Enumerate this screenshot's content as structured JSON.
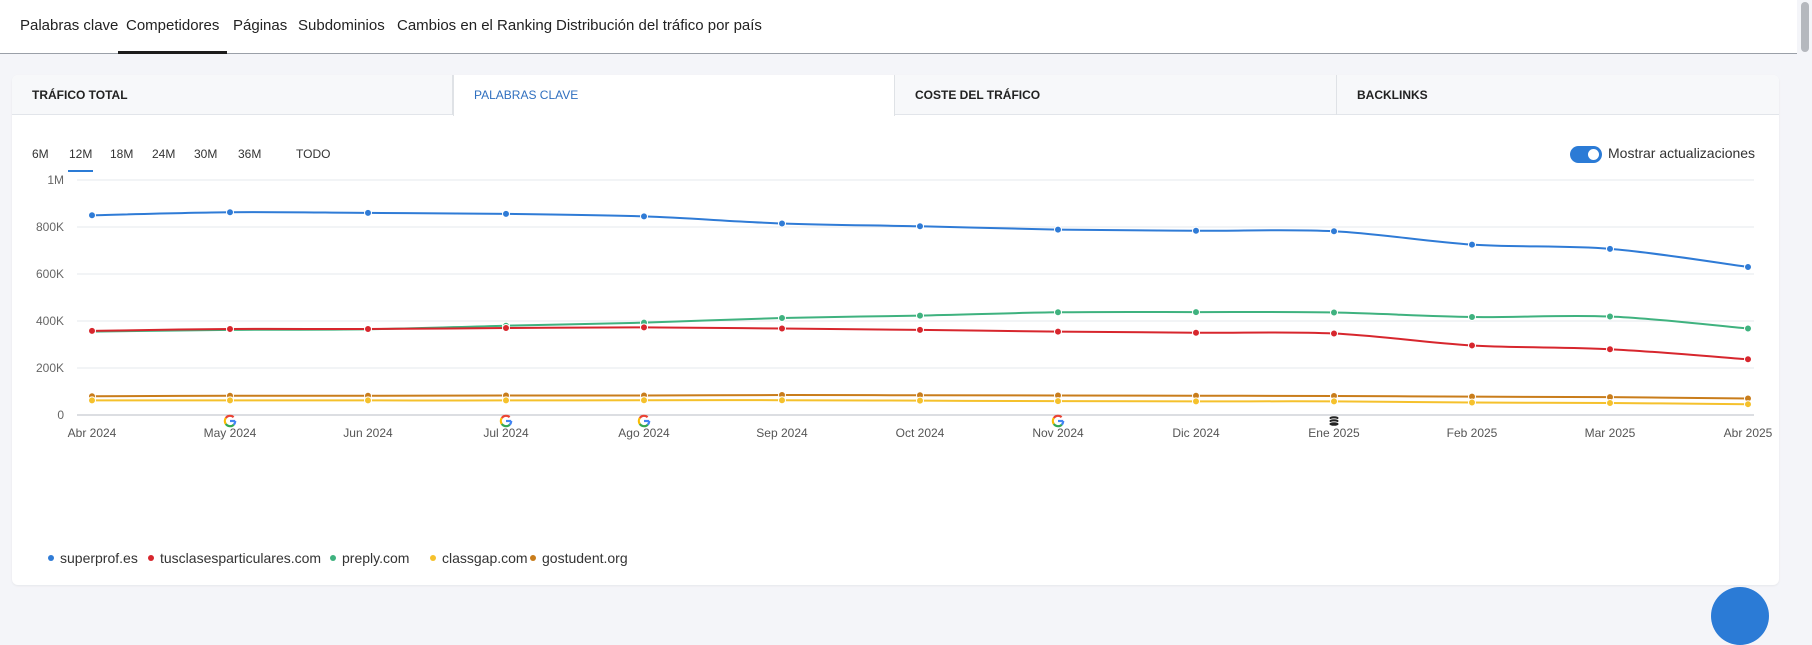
{
  "nav": {
    "tabs": [
      "Palabras clave",
      "Competidores",
      "Páginas",
      "Subdominios",
      "Cambios en el Ranking",
      "Distribución del tráfico por país"
    ],
    "active": 1
  },
  "metric_tabs": {
    "items": [
      "TRÁFICO TOTAL",
      "PALABRAS CLAVE",
      "COSTE DEL TRÁFICO",
      "BACKLINKS"
    ],
    "active": 1
  },
  "ranges": {
    "items": [
      "6M",
      "12M",
      "18M",
      "24M",
      "30M",
      "36M",
      "TODO"
    ],
    "active": 1
  },
  "toggle": {
    "label": "Mostrar actualizaciones",
    "on": true
  },
  "colors": {
    "accent": "#2b7bd6",
    "superprof": "#2f7bd6",
    "tusclases": "#d7262d",
    "preply": "#3fb27f",
    "classgap": "#f5c12c",
    "gostudent": "#c97d1b"
  },
  "chart_data": {
    "type": "line",
    "x": [
      "Abr 2024",
      "May 2024",
      "Jun 2024",
      "Jul 2024",
      "Ago 2024",
      "Sep 2024",
      "Oct 2024",
      "Nov 2024",
      "Dic 2024",
      "Ene 2025",
      "Feb 2025",
      "Mar 2025",
      "Abr 2025"
    ],
    "y_ticks": [
      "0",
      "200K",
      "400K",
      "600K",
      "800K",
      "1M"
    ],
    "ylim": [
      0,
      1000000
    ],
    "grid": true,
    "legend_position": "bottom-left",
    "series": [
      {
        "name": "superprof.es",
        "color": "#2f7bd6",
        "values": [
          850000,
          863000,
          860000,
          856000,
          845000,
          815000,
          803000,
          789000,
          784000,
          782000,
          725000,
          707000,
          630000
        ]
      },
      {
        "name": "tusclasesparticulares.com",
        "color": "#d7262d",
        "values": [
          358000,
          366000,
          366000,
          370000,
          373000,
          368000,
          362000,
          355000,
          350000,
          347000,
          296000,
          280000,
          237000
        ]
      },
      {
        "name": "preply.com",
        "color": "#3fb27f",
        "values": [
          355000,
          362000,
          365000,
          380000,
          393000,
          413000,
          423000,
          437000,
          438000,
          436000,
          417000,
          419000,
          368000
        ]
      },
      {
        "name": "classgap.com",
        "color": "#f5c12c",
        "values": [
          62000,
          62000,
          62000,
          62000,
          63000,
          63000,
          61000,
          59000,
          58000,
          58000,
          53000,
          51000,
          46000
        ]
      },
      {
        "name": "gostudent.org",
        "color": "#c97d1b",
        "values": [
          80000,
          82000,
          82000,
          83000,
          83000,
          85000,
          84000,
          83000,
          82000,
          81000,
          78000,
          76000,
          70000
        ]
      }
    ],
    "annotations": [
      {
        "x": "May 2024",
        "icon": "google-icon"
      },
      {
        "x": "Jul 2024",
        "icon": "google-icon"
      },
      {
        "x": "Ago 2024",
        "icon": "google-icon"
      },
      {
        "x": "Nov 2024",
        "icon": "google-icon"
      },
      {
        "x": "Ene 2025",
        "icon": "database-icon"
      }
    ]
  }
}
